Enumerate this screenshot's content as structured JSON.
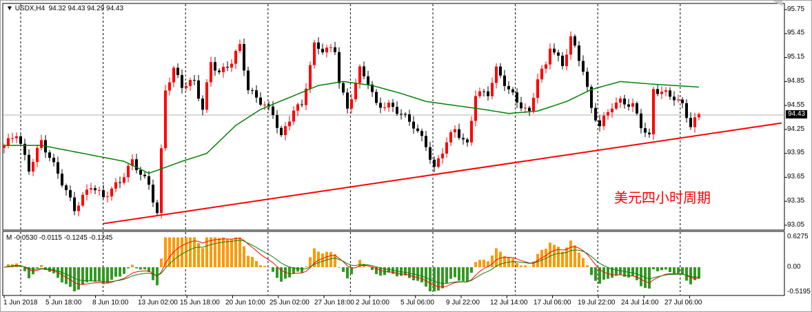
{
  "header": {
    "symbol": "USDX,H4",
    "ohlc": "94.32 94.43 94.29 94.43"
  },
  "indicator": {
    "label": "M -0.0530 -0.0115 -0.1245 -0.1245",
    "ticks": [
      "0.6275",
      "0.00",
      "-0.5195"
    ]
  },
  "annotation": "美元四小时周期",
  "current_price": "94.43",
  "colors": {
    "bull": "#ff0000",
    "bear": "#000000",
    "ma": "#008000",
    "trendline": "#ff0000",
    "hist_pos": "#ff9900",
    "hist_neg": "#339922",
    "signal1": "#ff0000",
    "signal2": "#008000"
  },
  "chart_data": {
    "type": "candlestick",
    "title": "USDX,H4",
    "y_ticks": [
      "95.75",
      "95.45",
      "95.15",
      "94.85",
      "94.55",
      "94.25",
      "93.95",
      "93.65",
      "93.35",
      "93.05"
    ],
    "ylim": [
      93.05,
      95.75
    ],
    "x_ticks": [
      "1 Jun 2018",
      "5 Jun 18:00",
      "8 Jun 10:00",
      "13 Jun 02:00",
      "15 Jun 18:00",
      "20 Jun 10:00",
      "25 Jun 02:00",
      "27 Jun 18:00",
      "2 Jul 10:00",
      "5 Jul 06:00",
      "9 Jul 22:00",
      "12 Jul 14:00",
      "17 Jul 06:00",
      "19 Jul 22:00",
      "24 Jul 14:00",
      "27 Jul 06:00"
    ],
    "candle_count": 169,
    "close_path": [
      [
        0,
        94.05
      ],
      [
        3,
        94.2
      ],
      [
        6,
        93.75
      ],
      [
        9,
        94.1
      ],
      [
        13,
        93.7
      ],
      [
        17,
        93.25
      ],
      [
        21,
        93.55
      ],
      [
        24,
        93.4
      ],
      [
        28,
        93.6
      ],
      [
        31,
        93.85
      ],
      [
        35,
        93.55
      ],
      [
        37,
        93.2
      ],
      [
        39,
        94.75
      ],
      [
        41,
        95.0
      ],
      [
        43,
        94.8
      ],
      [
        46,
        94.85
      ],
      [
        48,
        94.5
      ],
      [
        50,
        95.1
      ],
      [
        52,
        94.95
      ],
      [
        55,
        95.1
      ],
      [
        57,
        95.3
      ],
      [
        59,
        94.75
      ],
      [
        62,
        94.6
      ],
      [
        65,
        94.45
      ],
      [
        67,
        94.15
      ],
      [
        70,
        94.5
      ],
      [
        72,
        94.55
      ],
      [
        75,
        95.3
      ],
      [
        77,
        95.25
      ],
      [
        80,
        95.25
      ],
      [
        81,
        94.85
      ],
      [
        83,
        94.5
      ],
      [
        86,
        95.0
      ],
      [
        88,
        94.85
      ],
      [
        90,
        94.55
      ],
      [
        93,
        94.55
      ],
      [
        96,
        94.45
      ],
      [
        99,
        94.3
      ],
      [
        102,
        94.05
      ],
      [
        104,
        93.75
      ],
      [
        107,
        94.1
      ],
      [
        109,
        94.25
      ],
      [
        112,
        94.05
      ],
      [
        114,
        94.7
      ],
      [
        117,
        94.7
      ],
      [
        119,
        95.0
      ],
      [
        122,
        94.75
      ],
      [
        124,
        94.6
      ],
      [
        127,
        94.45
      ],
      [
        129,
        94.9
      ],
      [
        131,
        95.05
      ],
      [
        132,
        95.3
      ],
      [
        135,
        95.05
      ],
      [
        137,
        95.4
      ],
      [
        140,
        95.0
      ],
      [
        142,
        94.5
      ],
      [
        144,
        94.3
      ],
      [
        147,
        94.55
      ],
      [
        149,
        94.6
      ],
      [
        152,
        94.55
      ],
      [
        154,
        94.3
      ],
      [
        156,
        94.15
      ],
      [
        157,
        94.75
      ],
      [
        160,
        94.7
      ],
      [
        162,
        94.65
      ],
      [
        164,
        94.55
      ],
      [
        166,
        94.3
      ],
      [
        168,
        94.43
      ]
    ],
    "ma_path": [
      [
        0,
        94.05
      ],
      [
        9,
        94.05
      ],
      [
        19,
        93.95
      ],
      [
        29,
        93.85
      ],
      [
        35,
        93.7
      ],
      [
        43,
        93.85
      ],
      [
        49,
        93.95
      ],
      [
        56,
        94.3
      ],
      [
        62,
        94.5
      ],
      [
        69,
        94.65
      ],
      [
        76,
        94.8
      ],
      [
        82,
        94.85
      ],
      [
        89,
        94.8
      ],
      [
        96,
        94.7
      ],
      [
        102,
        94.6
      ],
      [
        109,
        94.55
      ],
      [
        116,
        94.5
      ],
      [
        122,
        94.45
      ],
      [
        129,
        94.48
      ],
      [
        136,
        94.6
      ],
      [
        142,
        94.75
      ],
      [
        149,
        94.85
      ],
      [
        156,
        94.82
      ],
      [
        162,
        94.8
      ],
      [
        168,
        94.78
      ]
    ],
    "trendline": {
      "from": [
        24,
        93.07
      ],
      "to": [
        188,
        94.33
      ]
    },
    "last_price": 94.43
  }
}
